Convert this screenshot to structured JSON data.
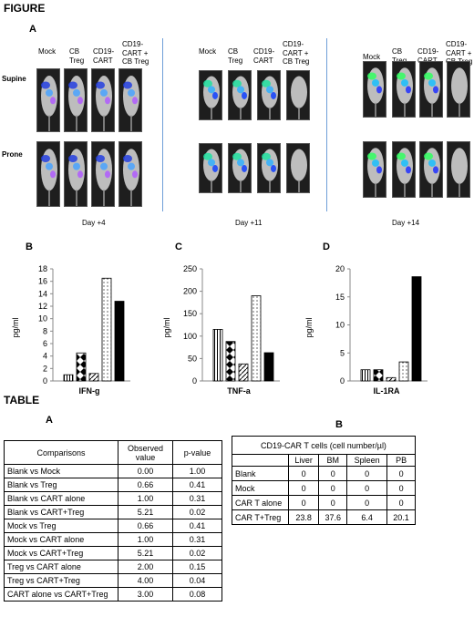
{
  "figure": {
    "title": "FIGURE",
    "panel_a_label": "A",
    "groups": [
      {
        "columns": [
          "Mock",
          "CB Treg",
          "CD19-CART",
          "CD19-CART + CB Treg"
        ],
        "day": "Day +4"
      },
      {
        "columns": [
          "Mock",
          "CB Treg",
          "CD19-CART",
          "CD19-CART + CB Treg"
        ],
        "day": "Day +11"
      },
      {
        "columns": [
          "Mock",
          "CB Treg",
          "CD19-CART",
          "CD19-CART + CB Treg"
        ],
        "day": "Day +14"
      }
    ],
    "rows": [
      "Supine",
      "Prone"
    ]
  },
  "chart_data": [
    {
      "type": "bar",
      "panel": "B",
      "ylabel": "pg/ml",
      "xlabel": "IFN-g",
      "ylim": [
        0,
        18
      ],
      "yticks": [
        0,
        2,
        4,
        6,
        8,
        10,
        12,
        14,
        16,
        18
      ],
      "values": [
        1,
        4.5,
        1.2,
        16.5,
        12.8
      ],
      "patterns": [
        "vlines",
        "diamonds",
        "diag",
        "dots",
        "solid"
      ]
    },
    {
      "type": "bar",
      "panel": "C",
      "ylabel": "pg/ml",
      "xlabel": "TNF-a",
      "ylim": [
        0,
        250
      ],
      "yticks": [
        0,
        50,
        100,
        150,
        200,
        250
      ],
      "values": [
        115,
        88,
        38,
        190,
        63
      ],
      "patterns": [
        "vlines",
        "diamonds",
        "diag",
        "dots",
        "solid"
      ]
    },
    {
      "type": "bar",
      "panel": "D",
      "ylabel": "pg/ml",
      "xlabel": "IL-1RA",
      "ylim": [
        0,
        20
      ],
      "yticks": [
        0,
        5,
        10,
        15,
        20
      ],
      "values": [
        2,
        2,
        0.6,
        3.4,
        18.6
      ],
      "patterns": [
        "vlines",
        "diamonds",
        "diag",
        "dots",
        "solid"
      ]
    }
  ],
  "table_section": {
    "title": "TABLE",
    "a_label": "A",
    "b_label": "B",
    "table_a": {
      "headers": [
        "Comparisons",
        "Observed value",
        "p-value"
      ],
      "rows": [
        [
          "Blank vs Mock",
          "0.00",
          "1.00"
        ],
        [
          "Blank vs Treg",
          "0.66",
          "0.41"
        ],
        [
          "Blank vs CART alone",
          "1.00",
          "0.31"
        ],
        [
          "Blank vs CART+Treg",
          "5.21",
          "0.02"
        ],
        [
          "Mock vs Treg",
          "0.66",
          "0.41"
        ],
        [
          "Mock vs CART alone",
          "1.00",
          "0.31"
        ],
        [
          "Mock vs CART+Treg",
          "5.21",
          "0.02"
        ],
        [
          "Treg vs CART alone",
          "2.00",
          "0.15"
        ],
        [
          "Treg vs CART+Treg",
          "4.00",
          "0.04"
        ],
        [
          "CART alone vs CART+Treg",
          "3.00",
          "0.08"
        ]
      ]
    },
    "table_b": {
      "title": "CD19-CAR T cells (cell number/µl)",
      "headers": [
        "",
        "Liver",
        "BM",
        "Spleen",
        "PB"
      ],
      "rows": [
        [
          "Blank",
          "0",
          "0",
          "0",
          "0"
        ],
        [
          "Mock",
          "0",
          "0",
          "0",
          "0"
        ],
        [
          "CAR T alone",
          "0",
          "0",
          "0",
          "0"
        ],
        [
          "CAR T+Treg",
          "23.8",
          "37.6",
          "6.4",
          "20.1"
        ]
      ]
    }
  }
}
